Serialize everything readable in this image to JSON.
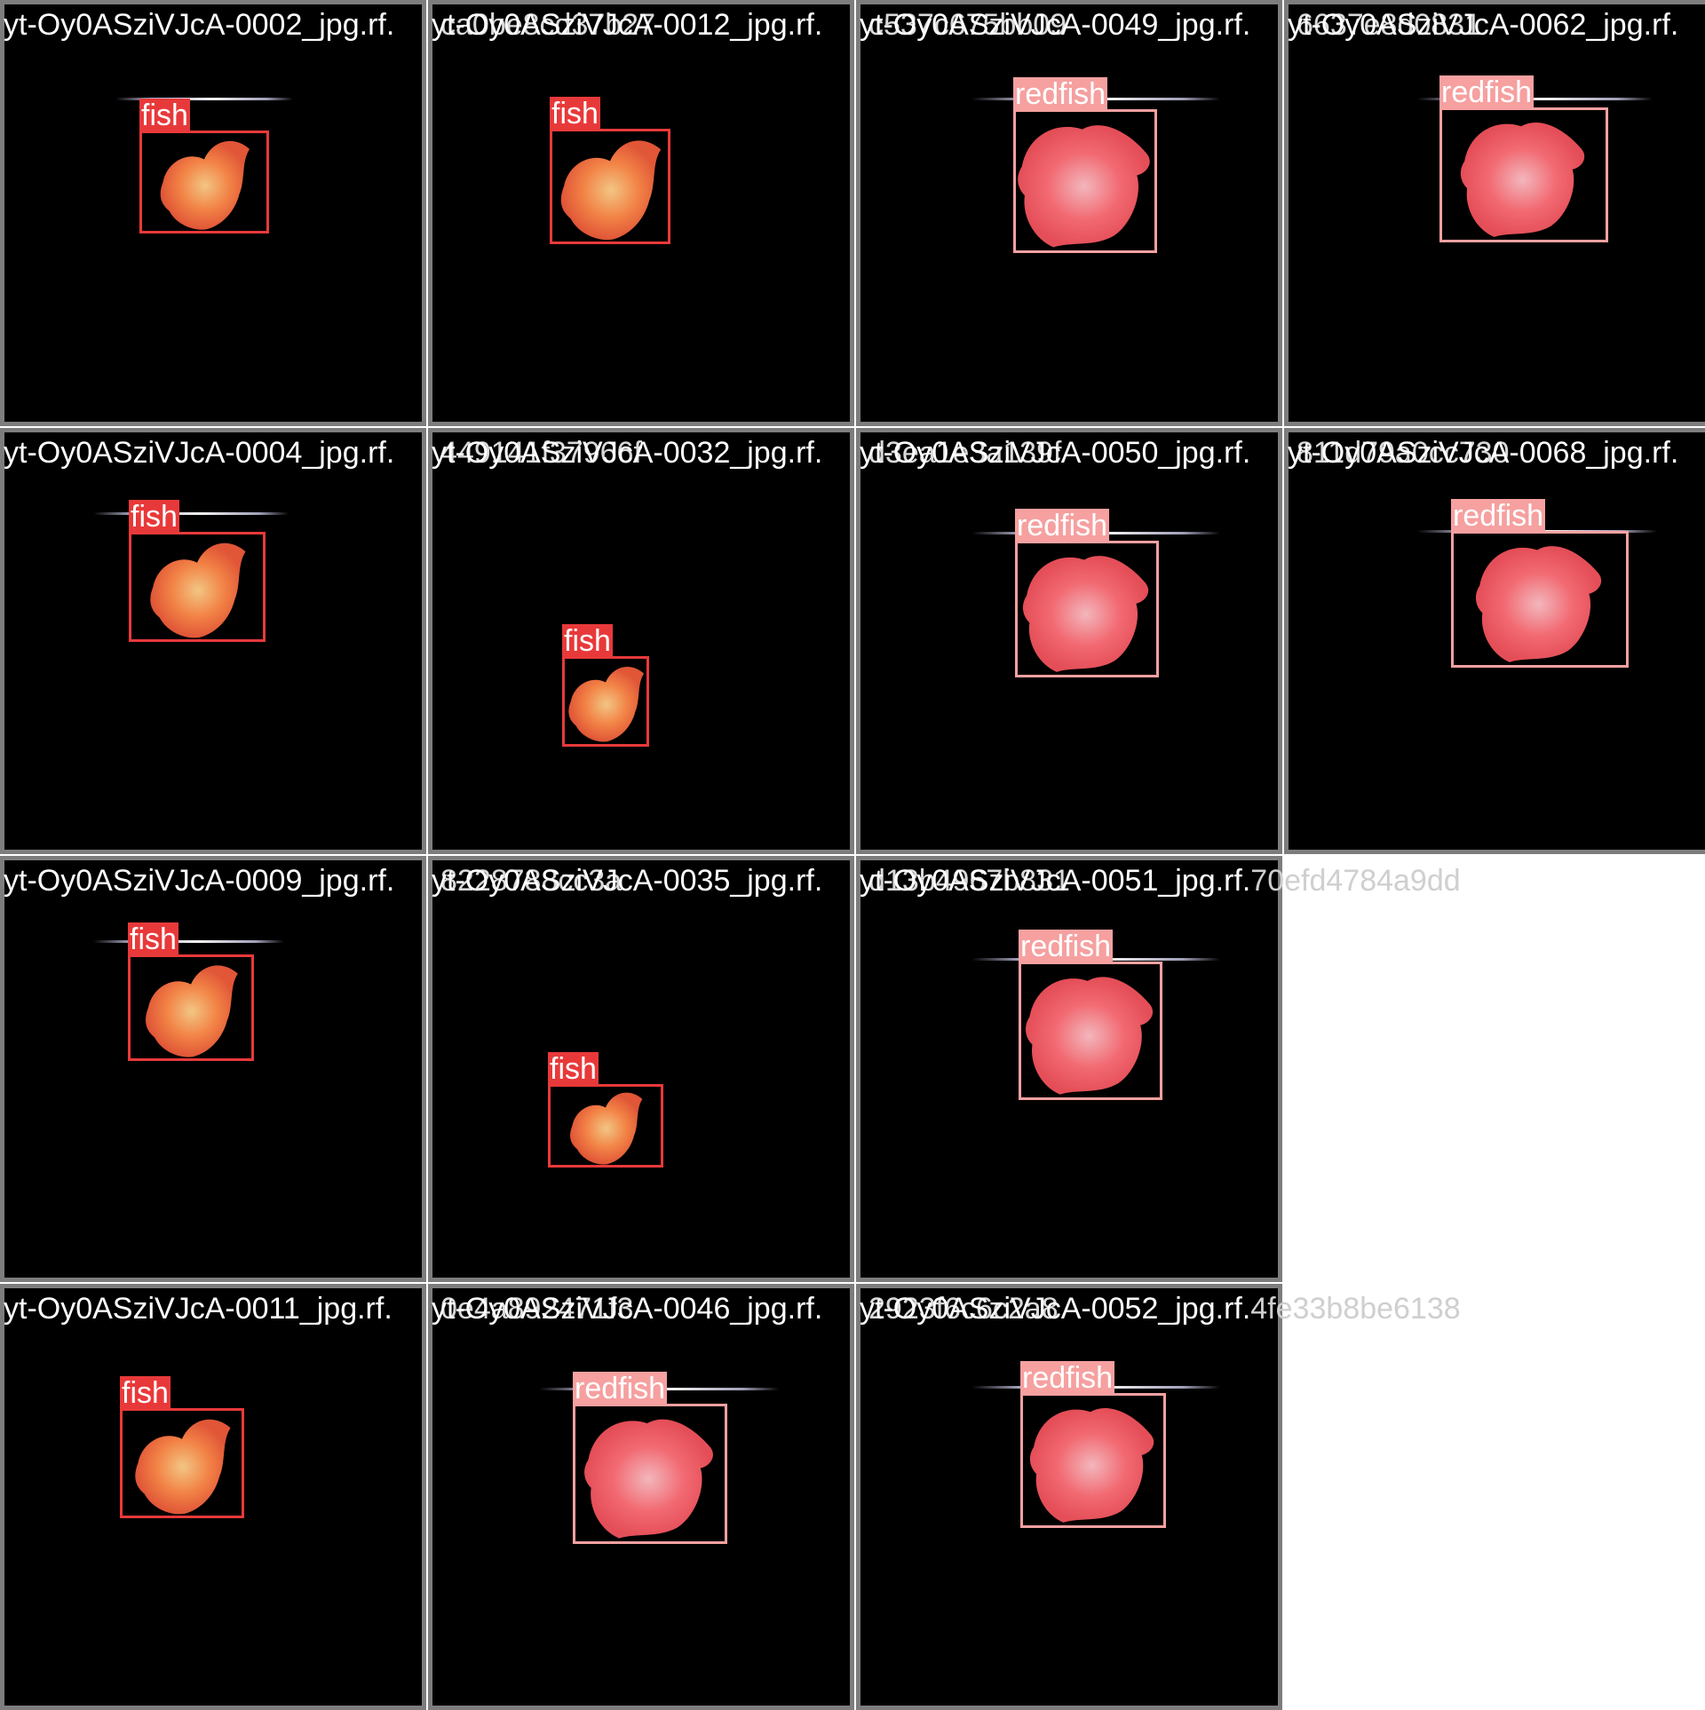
{
  "label_colors": {
    "fish": "#e8393a",
    "redfish": "#f6a0a0"
  },
  "tiles": [
    {
      "caption": "yt-Oy0ASziVJcA-0002_jpg.rf.",
      "label": "fish"
    },
    {
      "caption": "yt-Oy0ASziVJcA-0012_jpg.rf.",
      "label": "fish"
    },
    {
      "caption": "yt-Oy0ASziVJcA-0049_jpg.rf.",
      "label": "redfish"
    },
    {
      "caption": "yt-Oy0ASziVJcA-0062_jpg.rf.",
      "label": "redfish"
    },
    {
      "caption": "yt-Oy0ASziVJcA-0004_jpg.rf.",
      "label": "fish"
    },
    {
      "caption": "yt-Oy0ASziVJcA-0032_jpg.rf.",
      "label": "fish"
    },
    {
      "caption": "yt-Oy0ASziVJcA-0050_jpg.rf.",
      "label": "redfish"
    },
    {
      "caption": "yt-Oy0ASziVJcA-0068_jpg.rf.",
      "label": "redfish"
    },
    {
      "caption": "yt-Oy0ASziVJcA-0009_jpg.rf.",
      "label": "fish"
    },
    {
      "caption": "yt-Oy0ASziVJcA-0035_jpg.rf.",
      "label": "fish"
    },
    {
      "caption": "yt-Oy0ASziVJcA-0051_jpg.rf.70efd4784a9dd",
      "label": "redfish"
    },
    {
      "caption": "yt-Oy0ASziVJcA-0011_jpg.rf.",
      "label": "fish"
    },
    {
      "caption": "yt-Oy0ASziVJcA-0046_jpg.rf.",
      "label": "redfish"
    },
    {
      "caption": "yt-Oy0ASziVJcA-0052_jpg.rf.4fe33b8be6138",
      "label": "redfish"
    }
  ],
  "overlapping_caption_fragments": [
    "ca0be8cd37b27",
    "c537c675bb09",
    "6637e8d0831",
    "449141f37966f",
    "d3ea1e3a139f",
    "811d79a0cc730",
    "8228788cc3a",
    "d13b4967b831",
    "0e4a892471f3",
    "2923f6c6c2a8"
  ]
}
